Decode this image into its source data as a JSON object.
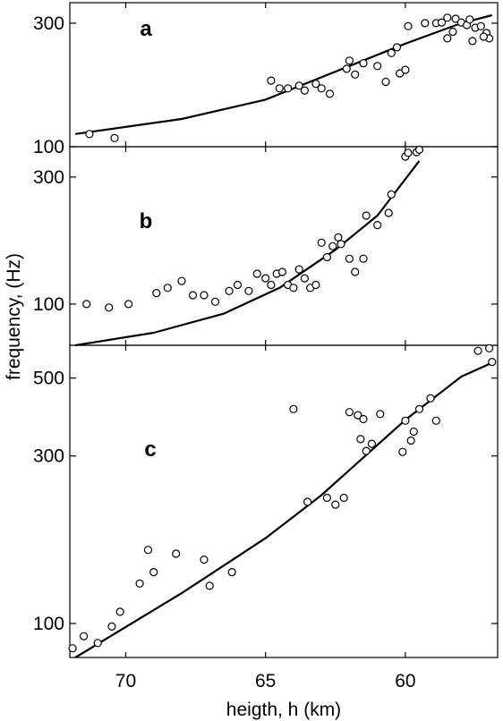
{
  "chart_data": [
    {
      "type": "scatter",
      "panel_label": "a",
      "xlabel": "heigth,  h (km)",
      "ylabel": "frequency,  (Hz)",
      "x_reversed": true,
      "xlim": [
        72,
        56.7
      ],
      "ylim": [
        100,
        360
      ],
      "xticks": [
        70,
        65,
        60
      ],
      "yticks": [
        100,
        300
      ],
      "points": [
        [
          70.4,
          108
        ],
        [
          71.3,
          112
        ],
        [
          64.8,
          180
        ],
        [
          64.5,
          168
        ],
        [
          64.2,
          168
        ],
        [
          63.8,
          172
        ],
        [
          63.6,
          165
        ],
        [
          63.2,
          175
        ],
        [
          63.0,
          168
        ],
        [
          62.7,
          160
        ],
        [
          62.0,
          215
        ],
        [
          62.1,
          200
        ],
        [
          61.8,
          190
        ],
        [
          61.5,
          210
        ],
        [
          61.0,
          205
        ],
        [
          60.5,
          230
        ],
        [
          60.2,
          192
        ],
        [
          60.0,
          198
        ],
        [
          60.7,
          178
        ],
        [
          59.9,
          292
        ],
        [
          58.9,
          300
        ],
        [
          58.7,
          302
        ],
        [
          58.5,
          315
        ],
        [
          58.2,
          312
        ],
        [
          58.0,
          302
        ],
        [
          57.8,
          295
        ],
        [
          57.7,
          310
        ],
        [
          57.5,
          288
        ],
        [
          57.3,
          292
        ],
        [
          57.1,
          275
        ],
        [
          57.0,
          262
        ],
        [
          57.2,
          266
        ],
        [
          58.3,
          278
        ],
        [
          58.5,
          262
        ],
        [
          57.6,
          256
        ],
        [
          59.3,
          300
        ],
        [
          60.3,
          242
        ]
      ],
      "fit": [
        [
          71.8,
          112
        ],
        [
          68.0,
          128
        ],
        [
          65.0,
          152
        ],
        [
          62.0,
          205
        ],
        [
          60.0,
          250
        ],
        [
          58.0,
          300
        ],
        [
          56.9,
          322
        ]
      ]
    },
    {
      "type": "scatter",
      "panel_label": "b",
      "x_reversed": true,
      "xlim": [
        72,
        56.7
      ],
      "ylim": [
        70,
        390
      ],
      "yticks": [
        100,
        300
      ],
      "points": [
        [
          71.4,
          100
        ],
        [
          70.6,
          97
        ],
        [
          69.9,
          100
        ],
        [
          68.9,
          110
        ],
        [
          68.5,
          115
        ],
        [
          68.0,
          122
        ],
        [
          67.6,
          108
        ],
        [
          67.2,
          108
        ],
        [
          66.8,
          102
        ],
        [
          66.3,
          112
        ],
        [
          66.0,
          118
        ],
        [
          65.6,
          112
        ],
        [
          65.3,
          130
        ],
        [
          65.0,
          125
        ],
        [
          64.8,
          118
        ],
        [
          64.6,
          130
        ],
        [
          64.4,
          132
        ],
        [
          64.2,
          118
        ],
        [
          64.0,
          115
        ],
        [
          63.8,
          135
        ],
        [
          63.6,
          125
        ],
        [
          63.4,
          115
        ],
        [
          63.2,
          118
        ],
        [
          63.0,
          170
        ],
        [
          62.8,
          150
        ],
        [
          62.6,
          165
        ],
        [
          62.4,
          178
        ],
        [
          62.3,
          168
        ],
        [
          62.0,
          148
        ],
        [
          61.8,
          132
        ],
        [
          61.5,
          148
        ],
        [
          61.4,
          215
        ],
        [
          61.0,
          198
        ],
        [
          60.6,
          220
        ],
        [
          60.5,
          258
        ],
        [
          60.0,
          358
        ],
        [
          59.9,
          370
        ],
        [
          59.6,
          372
        ],
        [
          59.5,
          380
        ]
      ],
      "fit": [
        [
          71.8,
          70
        ],
        [
          69.0,
          78
        ],
        [
          66.5,
          92
        ],
        [
          64.5,
          115
        ],
        [
          62.5,
          160
        ],
        [
          61.0,
          215
        ],
        [
          59.5,
          345
        ]
      ]
    },
    {
      "type": "scatter",
      "panel_label": "c",
      "x_reversed": true,
      "xlim": [
        72,
        56.7
      ],
      "ylim": [
        80,
        620
      ],
      "xticks": [
        70,
        65,
        60
      ],
      "yticks": [
        100,
        300,
        500
      ],
      "points": [
        [
          71.9,
          85
        ],
        [
          71.5,
          92
        ],
        [
          71.0,
          88
        ],
        [
          70.5,
          98
        ],
        [
          70.2,
          108
        ],
        [
          69.5,
          130
        ],
        [
          69.2,
          162
        ],
        [
          69.0,
          140
        ],
        [
          68.2,
          158
        ],
        [
          67.2,
          152
        ],
        [
          67.0,
          128
        ],
        [
          66.2,
          140
        ],
        [
          64.0,
          408
        ],
        [
          63.5,
          222
        ],
        [
          62.8,
          228
        ],
        [
          62.5,
          218
        ],
        [
          62.2,
          228
        ],
        [
          62.0,
          400
        ],
        [
          61.7,
          392
        ],
        [
          61.5,
          382
        ],
        [
          61.6,
          335
        ],
        [
          61.4,
          310
        ],
        [
          61.2,
          325
        ],
        [
          60.9,
          395
        ],
        [
          60.1,
          308
        ],
        [
          60.0,
          378
        ],
        [
          59.8,
          332
        ],
        [
          59.7,
          352
        ],
        [
          59.5,
          408
        ],
        [
          59.1,
          438
        ],
        [
          58.9,
          378
        ],
        [
          57.4,
          598
        ],
        [
          57.0,
          608
        ],
        [
          56.9,
          556
        ]
      ],
      "fit": [
        [
          71.8,
          80
        ],
        [
          68.0,
          122
        ],
        [
          65.0,
          175
        ],
        [
          63.0,
          232
        ],
        [
          60.0,
          380
        ],
        [
          58.0,
          505
        ],
        [
          57.0,
          548
        ]
      ]
    }
  ]
}
